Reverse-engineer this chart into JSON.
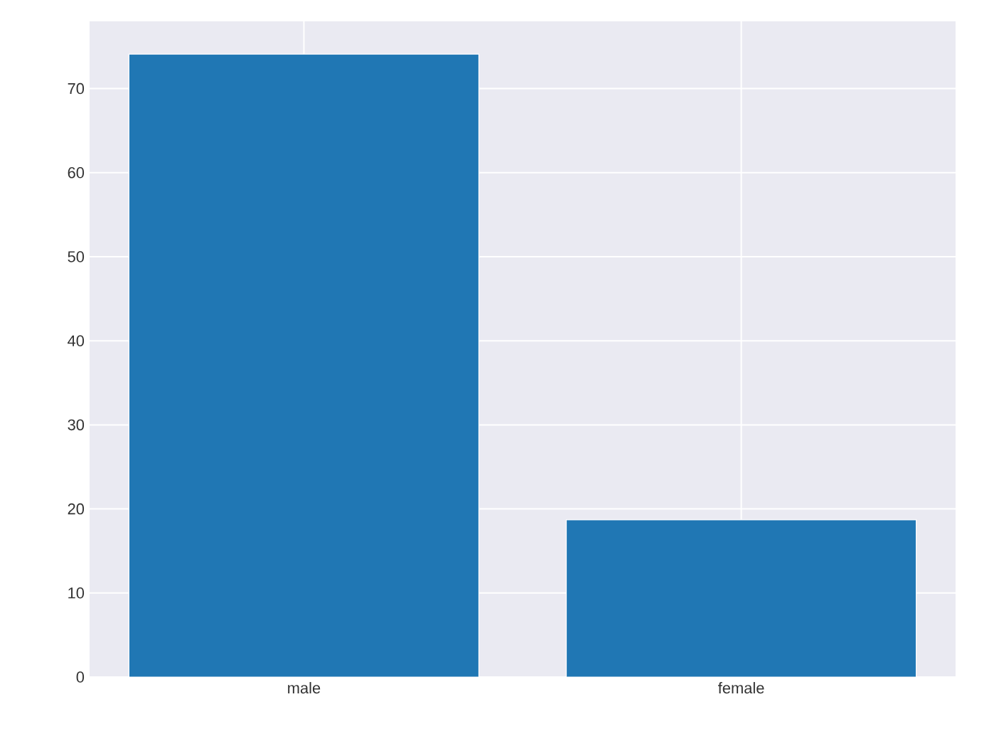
{
  "chart_data": {
    "type": "bar",
    "categories": [
      "male",
      "female"
    ],
    "values": [
      74.1,
      18.7
    ],
    "color": "#2077b4",
    "ylim": [
      0,
      78
    ],
    "yticks": [
      0,
      10,
      20,
      30,
      40,
      50,
      60,
      70
    ],
    "grid": true
  }
}
